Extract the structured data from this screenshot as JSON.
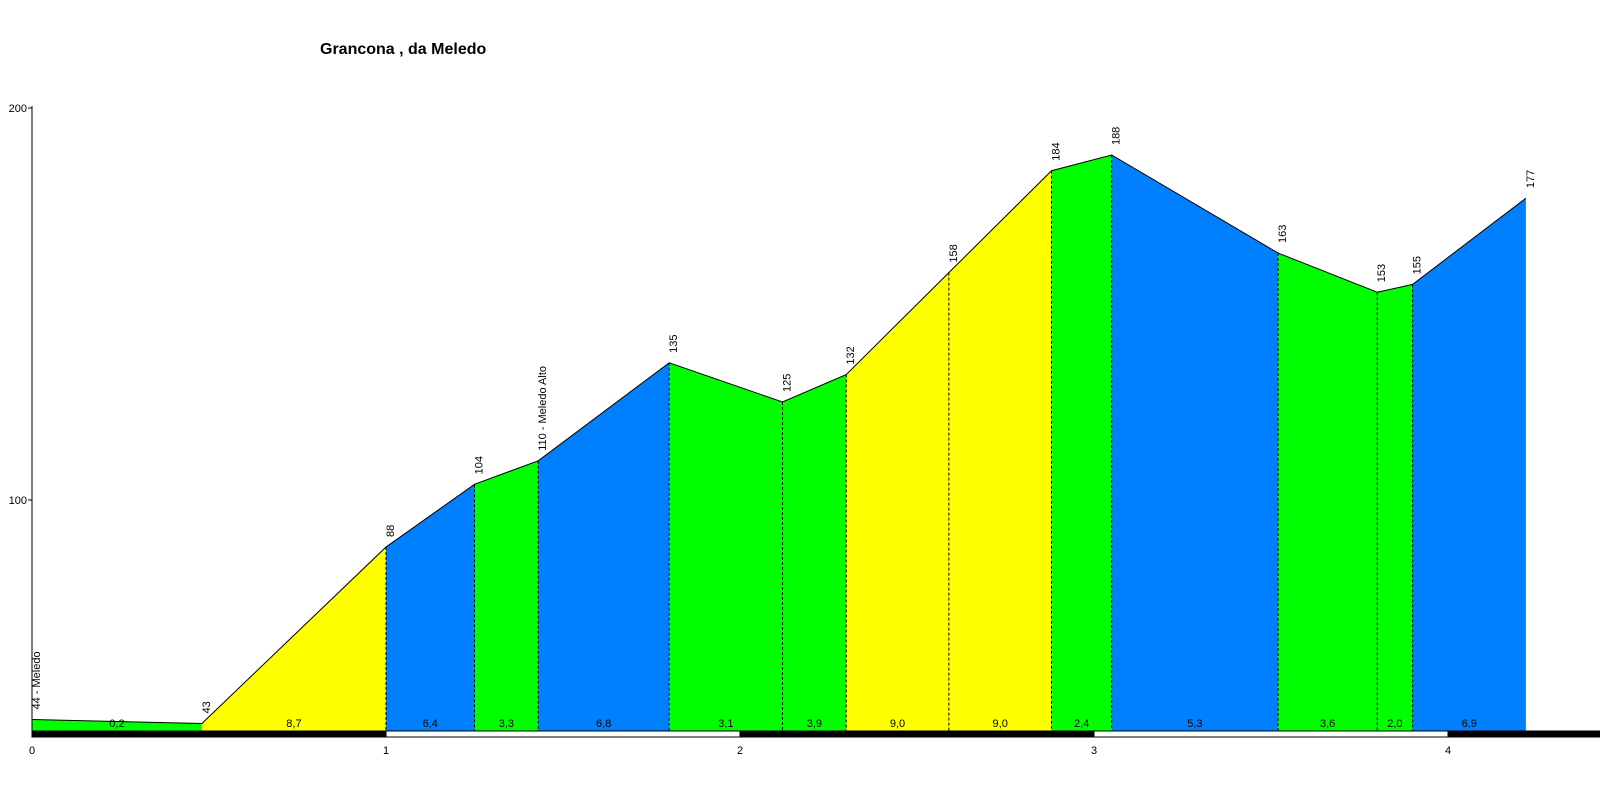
{
  "chart_data": {
    "type": "area",
    "title": "Grancona , da Meledo",
    "xlabel": "",
    "ylabel": "",
    "xlim": [
      0,
      4.4
    ],
    "ylim": [
      40,
      200
    ],
    "x_ticks": [
      "0",
      "1",
      "2",
      "3",
      "4"
    ],
    "y_ticks": [
      "100",
      "200"
    ],
    "points": [
      {
        "x": 0.0,
        "y": 44,
        "label": "44 - Meledo"
      },
      {
        "x": 0.48,
        "y": 43,
        "label": "43"
      },
      {
        "x": 1.0,
        "y": 88,
        "label": "88"
      },
      {
        "x": 1.25,
        "y": 104,
        "label": "104"
      },
      {
        "x": 1.43,
        "y": 110,
        "label": "110 - Meledo Alto"
      },
      {
        "x": 1.8,
        "y": 135,
        "label": "135"
      },
      {
        "x": 2.12,
        "y": 125,
        "label": "125"
      },
      {
        "x": 2.3,
        "y": 132,
        "label": "132"
      },
      {
        "x": 2.59,
        "y": 158,
        "label": "158"
      },
      {
        "x": 2.88,
        "y": 184,
        "label": "184"
      },
      {
        "x": 3.05,
        "y": 188,
        "label": "188"
      },
      {
        "x": 3.52,
        "y": 163,
        "label": "163"
      },
      {
        "x": 3.8,
        "y": 153,
        "label": "153"
      },
      {
        "x": 3.9,
        "y": 155,
        "label": "155"
      },
      {
        "x": 4.22,
        "y": 177,
        "label": "177"
      }
    ],
    "segments": [
      {
        "gradient": "0,2",
        "color": "#00ff00"
      },
      {
        "gradient": "8,7",
        "color": "#ffff00"
      },
      {
        "gradient": "6,4",
        "color": "#0080ff"
      },
      {
        "gradient": "3,3",
        "color": "#00ff00"
      },
      {
        "gradient": "6,8",
        "color": "#0080ff"
      },
      {
        "gradient": "3,1",
        "color": "#00ff00"
      },
      {
        "gradient": "3,9",
        "color": "#00ff00"
      },
      {
        "gradient": "9,0",
        "color": "#ffff00"
      },
      {
        "gradient": "9,0",
        "color": "#ffff00"
      },
      {
        "gradient": "2,4",
        "color": "#00ff00"
      },
      {
        "gradient": "5,3",
        "color": "#0080ff"
      },
      {
        "gradient": "3,6",
        "color": "#00ff00"
      },
      {
        "gradient": "2,0",
        "color": "#00ff00"
      },
      {
        "gradient": "6,9",
        "color": "#0080ff"
      }
    ],
    "grid": false,
    "legend": "none"
  }
}
